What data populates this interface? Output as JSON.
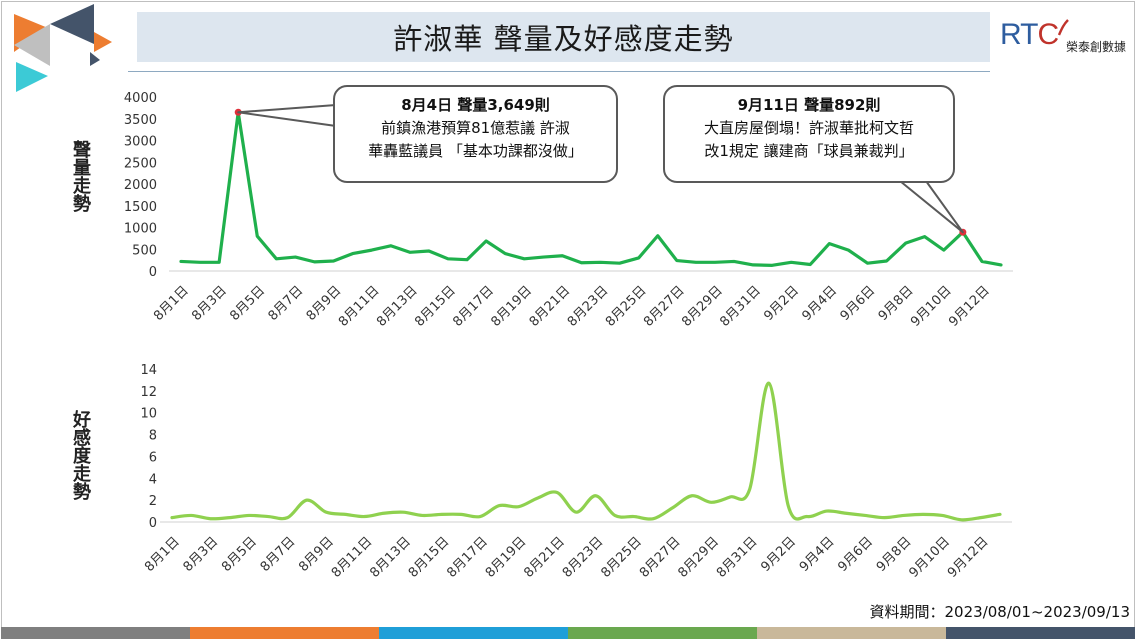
{
  "title": "許淑華 聲量及好感度走勢",
  "logo": {
    "mark_rt": "RT",
    "mark_c": "C",
    "subtitle": "榮泰創數據"
  },
  "footer": {
    "period": "資料期間：2023/08/01~2023/09/13"
  },
  "colors": {
    "line": "#1fb04c",
    "smooth_line": "#8fd14f",
    "peak_marker": "#e0303a",
    "strip": [
      "#7f7f7f",
      "#ed7d31",
      "#1f9fd8",
      "#6aa84f",
      "#c9b89a",
      "#44546a"
    ]
  },
  "callouts": [
    {
      "head": "8月4日 聲量3,649則",
      "line1": "前鎮漁港預算81億惹議  許淑",
      "line2": "華轟藍議員 「基本功課都沒做」"
    },
    {
      "head": "9月11日 聲量892則",
      "line1": "大直房屋倒塌！許淑華批柯文哲",
      "line2": "改1規定 讓建商「球員兼裁判」"
    }
  ],
  "chart_data": [
    {
      "type": "line",
      "ylabel": "聲量走勢",
      "ylim": [
        0,
        4000
      ],
      "yticks": [
        0,
        500,
        1000,
        1500,
        2000,
        2500,
        3000,
        3500,
        4000
      ],
      "x": [
        "8月1日",
        "8月2日",
        "8月3日",
        "8月4日",
        "8月5日",
        "8月6日",
        "8月7日",
        "8月8日",
        "8月9日",
        "8月10日",
        "8月11日",
        "8月12日",
        "8月13日",
        "8月14日",
        "8月15日",
        "8月16日",
        "8月17日",
        "8月18日",
        "8月19日",
        "8月20日",
        "8月21日",
        "8月22日",
        "8月23日",
        "8月24日",
        "8月25日",
        "8月26日",
        "8月27日",
        "8月28日",
        "8月29日",
        "8月30日",
        "8月31日",
        "9月1日",
        "9月2日",
        "9月3日",
        "9月4日",
        "9月5日",
        "9月6日",
        "9月7日",
        "9月8日",
        "9月9日",
        "9月10日",
        "9月11日",
        "9月12日",
        "9月13日"
      ],
      "xticks": [
        "8月1日",
        "8月3日",
        "8月5日",
        "8月7日",
        "8月9日",
        "8月11日",
        "8月13日",
        "8月15日",
        "8月17日",
        "8月19日",
        "8月21日",
        "8月23日",
        "8月25日",
        "8月27日",
        "8月29日",
        "8月31日",
        "9月2日",
        "9月4日",
        "9月6日",
        "9月8日",
        "9月10日",
        "9月12日"
      ],
      "values": [
        220,
        200,
        200,
        3649,
        800,
        280,
        320,
        210,
        230,
        400,
        480,
        580,
        430,
        460,
        280,
        260,
        690,
        400,
        280,
        320,
        350,
        190,
        200,
        180,
        300,
        810,
        240,
        200,
        200,
        220,
        140,
        130,
        200,
        150,
        630,
        480,
        180,
        230,
        640,
        790,
        480,
        892,
        220,
        140
      ],
      "highlights": [
        3,
        41
      ],
      "grid": false
    },
    {
      "type": "line",
      "ylabel": "好感度走勢",
      "ylim": [
        0,
        14
      ],
      "yticks": [
        0,
        2,
        4,
        6,
        8,
        10,
        12,
        14
      ],
      "x": [
        "8月1日",
        "8月2日",
        "8月3日",
        "8月4日",
        "8月5日",
        "8月6日",
        "8月7日",
        "8月8日",
        "8月9日",
        "8月10日",
        "8月11日",
        "8月12日",
        "8月13日",
        "8月14日",
        "8月15日",
        "8月16日",
        "8月17日",
        "8月18日",
        "8月19日",
        "8月20日",
        "8月21日",
        "8月22日",
        "8月23日",
        "8月24日",
        "8月25日",
        "8月26日",
        "8月27日",
        "8月28日",
        "8月29日",
        "8月30日",
        "8月31日",
        "9月1日",
        "9月2日",
        "9月3日",
        "9月4日",
        "9月5日",
        "9月6日",
        "9月7日",
        "9月8日",
        "9月9日",
        "9月10日",
        "9月11日",
        "9月12日",
        "9月13日"
      ],
      "xticks": [
        "8月1日",
        "8月3日",
        "8月5日",
        "8月7日",
        "8月9日",
        "8月11日",
        "8月13日",
        "8月15日",
        "8月17日",
        "8月19日",
        "8月21日",
        "8月23日",
        "8月25日",
        "8月27日",
        "8月29日",
        "8月31日",
        "9月2日",
        "9月4日",
        "9月6日",
        "9月8日",
        "9月10日",
        "9月12日"
      ],
      "values": [
        0.4,
        0.6,
        0.3,
        0.4,
        0.6,
        0.5,
        0.4,
        2.0,
        0.9,
        0.7,
        0.5,
        0.8,
        0.9,
        0.6,
        0.7,
        0.7,
        0.5,
        1.5,
        1.4,
        2.2,
        2.7,
        0.9,
        2.4,
        0.6,
        0.5,
        0.3,
        1.3,
        2.4,
        1.8,
        2.3,
        3.0,
        12.7,
        1.5,
        0.5,
        1.0,
        0.8,
        0.6,
        0.4,
        0.6,
        0.7,
        0.6,
        0.2,
        0.4,
        0.7
      ],
      "smooth": true,
      "grid": false
    }
  ]
}
